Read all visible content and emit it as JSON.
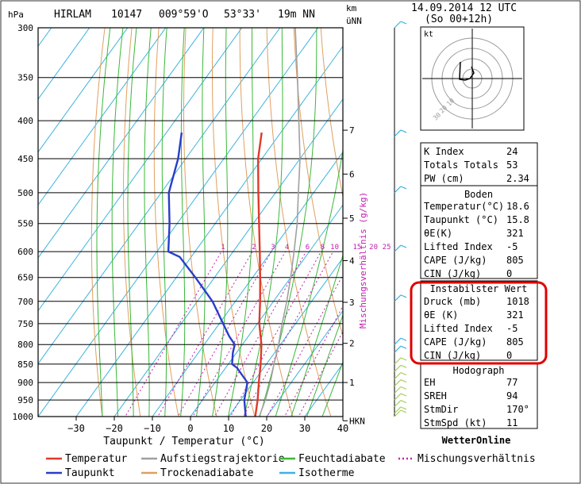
{
  "header": {
    "units_left": "hPa",
    "model": "HIRLAM",
    "station": "10147",
    "lon": "009°59'O",
    "lat": "53°33'",
    "elev": "19m NN",
    "km_label": "km",
    "unn_label": "üNN",
    "date": "14.09.2014 12 UTC",
    "run": "(So 00+12h)"
  },
  "chart_data": {
    "type": "line",
    "title": "",
    "xlabel": "Taupunkt / Temperatur (°C)",
    "ylabel": "hPa",
    "xlim": [
      -40,
      40
    ],
    "ylim": [
      1000,
      300
    ],
    "y_scale": "log",
    "skew": "skew-T",
    "x_ticks": [
      "−30",
      "−20",
      "−10",
      "0",
      "10",
      "20",
      "30",
      "40"
    ],
    "y_ticks": [
      "300",
      "350",
      "400",
      "450",
      "500",
      "550",
      "600",
      "650",
      "700",
      "750",
      "800",
      "850",
      "900",
      "950",
      "1000"
    ],
    "height_ticks": [
      "7",
      "6",
      "5",
      "4",
      "3",
      "2",
      "1",
      "HKN"
    ],
    "mixing_axis_label": "Mischungsverhältnis (g/kg)",
    "mixing_ratio_ticks": [
      "1",
      "2",
      "3",
      "4",
      "6",
      "8",
      "10",
      "15",
      "20",
      "25"
    ],
    "series": [
      {
        "name": "Temperatur",
        "points": [
          [
            1018,
            18.6
          ],
          [
            1000,
            17
          ],
          [
            950,
            14.5
          ],
          [
            900,
            11.5
          ],
          [
            850,
            8.5
          ],
          [
            800,
            5
          ],
          [
            750,
            0.5
          ],
          [
            700,
            -3.5
          ],
          [
            650,
            -8
          ],
          [
            600,
            -13
          ],
          [
            550,
            -18.5
          ],
          [
            500,
            -24.5
          ],
          [
            450,
            -31
          ],
          [
            415,
            -35
          ]
        ]
      },
      {
        "name": "Taupunkt",
        "points": [
          [
            1018,
            15.8
          ],
          [
            1000,
            14.5
          ],
          [
            950,
            11
          ],
          [
            900,
            8.5
          ],
          [
            860,
            3
          ],
          [
            850,
            1
          ],
          [
            820,
            -1
          ],
          [
            800,
            -2
          ],
          [
            780,
            -5
          ],
          [
            750,
            -9
          ],
          [
            700,
            -16
          ],
          [
            650,
            -25
          ],
          [
            610,
            -33
          ],
          [
            600,
            -37
          ],
          [
            550,
            -42
          ],
          [
            500,
            -48
          ],
          [
            450,
            -52
          ],
          [
            415,
            -56
          ]
        ]
      },
      {
        "name": "Aufstiegstrajektorie",
        "points": [
          [
            1018,
            18.6
          ],
          [
            950,
            16.5
          ],
          [
            900,
            14.5
          ],
          [
            850,
            12
          ],
          [
            800,
            9.5
          ],
          [
            750,
            6.5
          ],
          [
            700,
            3.5
          ],
          [
            650,
            0
          ],
          [
            600,
            -4
          ],
          [
            550,
            -8.5
          ],
          [
            500,
            -14
          ],
          [
            450,
            -20
          ],
          [
            400,
            -27.5
          ],
          [
            350,
            -36
          ],
          [
            300,
            -46
          ]
        ]
      }
    ],
    "legend": {
      "placement": "bottom",
      "items": [
        "Temperatur",
        "Aufstiegstrajektorie",
        "Feuchtadiabate",
        "Mischungsverhältnis",
        "Taupunkt",
        "Trockenadiabate",
        "Isotherme"
      ]
    }
  },
  "indices": [
    {
      "label": "K Index",
      "value": "24"
    },
    {
      "label": "Totals Totals",
      "value": "53"
    },
    {
      "label": "PW (cm)",
      "value": "2.34"
    }
  ],
  "boden": {
    "title": "Boden",
    "rows": [
      {
        "label": "Temperatur(°C)",
        "value": "18.6"
      },
      {
        "label": "Taupunkt (°C)",
        "value": "15.8"
      },
      {
        "label": "θE(K)",
        "value": "321"
      },
      {
        "label": "Lifted Index",
        "value": "-5"
      },
      {
        "label": "CAPE (J/kg)",
        "value": "805"
      },
      {
        "label": "CIN (J/kg)",
        "value": "0"
      }
    ]
  },
  "instabil": {
    "title": "Instabilster Wert",
    "rows": [
      {
        "label": "Druck (mb)",
        "value": "1018"
      },
      {
        "label": "θE (K)",
        "value": "321"
      },
      {
        "label": "Lifted Index",
        "value": "-5"
      },
      {
        "label": "CAPE (J/kg)",
        "value": "805"
      },
      {
        "label": "CIN (J/kg)",
        "value": "0"
      }
    ]
  },
  "hodograph_table": {
    "title": "Hodograph",
    "rows": [
      {
        "label": "EH",
        "value": "77"
      },
      {
        "label": "SREH",
        "value": "94"
      },
      {
        "label": "StmDir",
        "value": "170°"
      },
      {
        "label": "StmSpd (kt)",
        "value": "11"
      }
    ]
  },
  "hodograph": {
    "unit": "kt",
    "ring_labels": [
      "10",
      "20",
      "30"
    ]
  },
  "brand": "WetterOnline",
  "colors": {
    "temperature": "#e03a2a",
    "dewpoint": "#2a3dc8",
    "trajectory": "#a0a0a0",
    "moist_adiabat": "#3ab83a",
    "dry_adiabat": "#e0a060",
    "isotherm": "#3cb4e0",
    "mixing": "#c020b0",
    "highlight": "#e00000"
  }
}
